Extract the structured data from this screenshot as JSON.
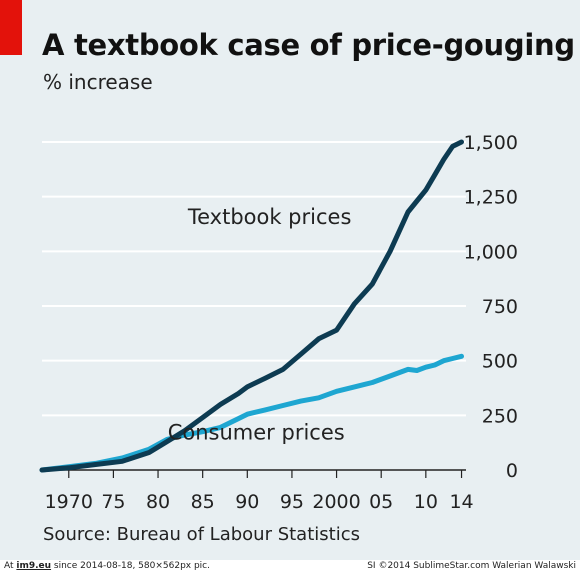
{
  "header": {
    "title": "A textbook case of price-gouging",
    "subtitle": "% increase"
  },
  "source": "Source: Bureau of Labour Statistics",
  "footer": {
    "left_prefix": "At ",
    "left_site": "im9.eu",
    "left_suffix": " since 2014-08-18, 580×562px pic.",
    "right": "SI ©2014 SublimeStar.com Walerian Walawski"
  },
  "colors": {
    "background": "#e8eff2",
    "accent_red": "#e3120b",
    "textbook": "#0d3b52",
    "consumer": "#1ea6d1",
    "grid": "#ffffff"
  },
  "chart_data": {
    "type": "line",
    "title": "A textbook case of price-gouging",
    "subtitle": "% increase",
    "xlabel": "",
    "ylabel": "",
    "xlim": [
      1967,
      2014.5
    ],
    "ylim": [
      0,
      1500
    ],
    "y_axis_position": "right",
    "grid": true,
    "xticks": [
      1970,
      1975,
      1980,
      1985,
      1990,
      1995,
      2000,
      2005,
      2010,
      2014
    ],
    "xtick_labels": [
      "1970",
      "75",
      "80",
      "85",
      "90",
      "95",
      "2000",
      "05",
      "10",
      "14"
    ],
    "yticks": [
      0,
      250,
      500,
      750,
      1000,
      1250,
      1500
    ],
    "ytick_labels": [
      "0",
      "250",
      "500",
      "750",
      "1,000",
      "1,250",
      "1,500"
    ],
    "series": [
      {
        "name": "Textbook prices",
        "x": [
          1967,
          1970,
          1973,
          1976,
          1979,
          1981,
          1983,
          1985,
          1987,
          1989,
          1990,
          1992,
          1994,
          1996,
          1998,
          2000,
          2002,
          2004,
          2006,
          2008,
          2009,
          2010,
          2011,
          2012,
          2013,
          2014
        ],
        "y": [
          0,
          10,
          25,
          40,
          80,
          130,
          180,
          240,
          300,
          350,
          380,
          420,
          460,
          530,
          600,
          640,
          760,
          850,
          1000,
          1180,
          1230,
          1280,
          1350,
          1420,
          1480,
          1500
        ]
      },
      {
        "name": "Consumer prices",
        "x": [
          1967,
          1970,
          1973,
          1976,
          1979,
          1981,
          1983,
          1985,
          1987,
          1989,
          1990,
          1992,
          1994,
          1996,
          1998,
          2000,
          2002,
          2004,
          2006,
          2008,
          2009,
          2010,
          2011,
          2012,
          2013,
          2014
        ],
        "y": [
          0,
          15,
          30,
          55,
          95,
          140,
          160,
          175,
          195,
          235,
          255,
          275,
          295,
          315,
          330,
          360,
          380,
          400,
          430,
          460,
          455,
          470,
          480,
          500,
          510,
          520
        ]
      }
    ],
    "annotations": [
      {
        "text": "Textbook prices",
        "x": 1992.5,
        "y": 1125
      },
      {
        "text": "Consumer prices",
        "x": 1991,
        "y": 140
      }
    ]
  }
}
